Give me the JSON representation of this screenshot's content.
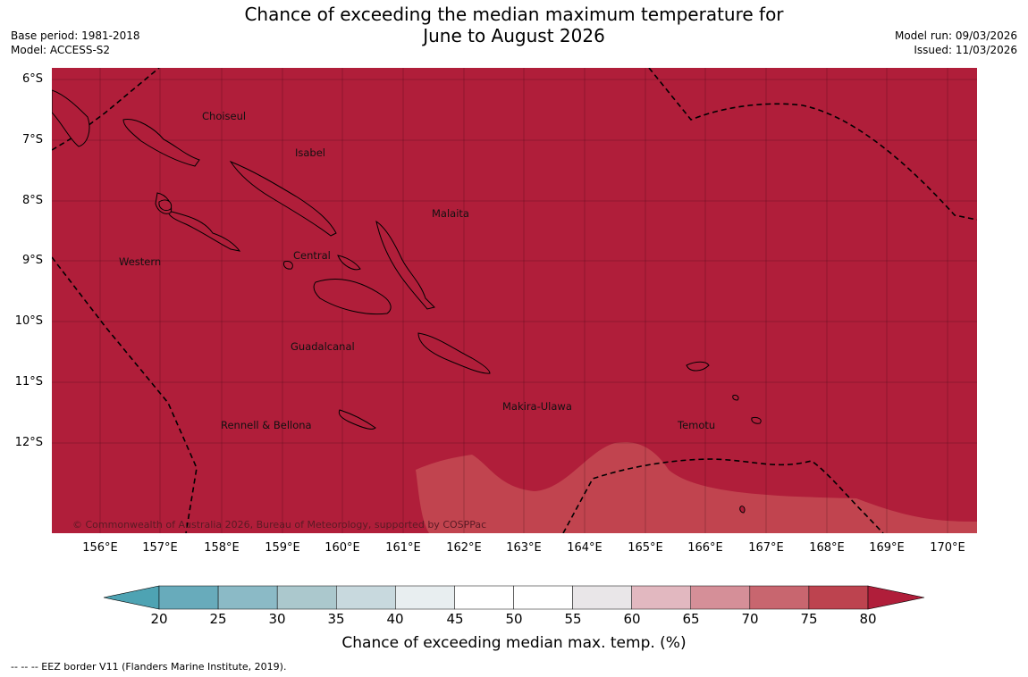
{
  "title": {
    "line1": "Chance of exceeding the median maximum temperature for",
    "line2": "June to August 2026"
  },
  "meta_left": {
    "base_period": "Base period: 1981-2018",
    "model": "Model: ACCESS-S2"
  },
  "meta_right": {
    "model_run": "Model run: 09/03/2026",
    "issued": "Issued: 11/03/2026"
  },
  "map": {
    "background_color": "#b01e3a",
    "lighter_zone_color": "#c1444f",
    "region_labels": [
      "Choiseul",
      "Isabel",
      "Malaita",
      "Western",
      "Central",
      "Guadalcanal",
      "Makira-Ulawa",
      "Rennell & Bellona",
      "Temotu"
    ],
    "copyright": "© Commonwealth of Australia 2026, Bureau of Meteorology, supported by COSPPac",
    "lat_labels": [
      "6°S",
      "7°S",
      "8°S",
      "9°S",
      "10°S",
      "11°S",
      "12°S"
    ],
    "lon_labels": [
      "156°E",
      "157°E",
      "158°E",
      "159°E",
      "160°E",
      "161°E",
      "162°E",
      "163°E",
      "164°E",
      "165°E",
      "166°E",
      "167°E",
      "168°E",
      "169°E",
      "170°E"
    ]
  },
  "colorbar": {
    "ticks": [
      "20",
      "25",
      "30",
      "35",
      "40",
      "45",
      "50",
      "55",
      "60",
      "65",
      "70",
      "75",
      "80"
    ],
    "low_color": "#4ea3b3",
    "colors": [
      "#68abbb",
      "#8bbac6",
      "#abc8cd",
      "#c8d9de",
      "#e8eef0",
      "#ffffff",
      "#ffffff",
      "#e9e6e8",
      "#e2b8c0",
      "#d58f98",
      "#c8666f",
      "#bd434f"
    ],
    "high_color": "#b01e3a",
    "label": "Chance of exceeding median max. temp. (%)"
  },
  "footnote": "--  --  -- EEZ border V11 (Flanders Marine Institute, 2019)."
}
